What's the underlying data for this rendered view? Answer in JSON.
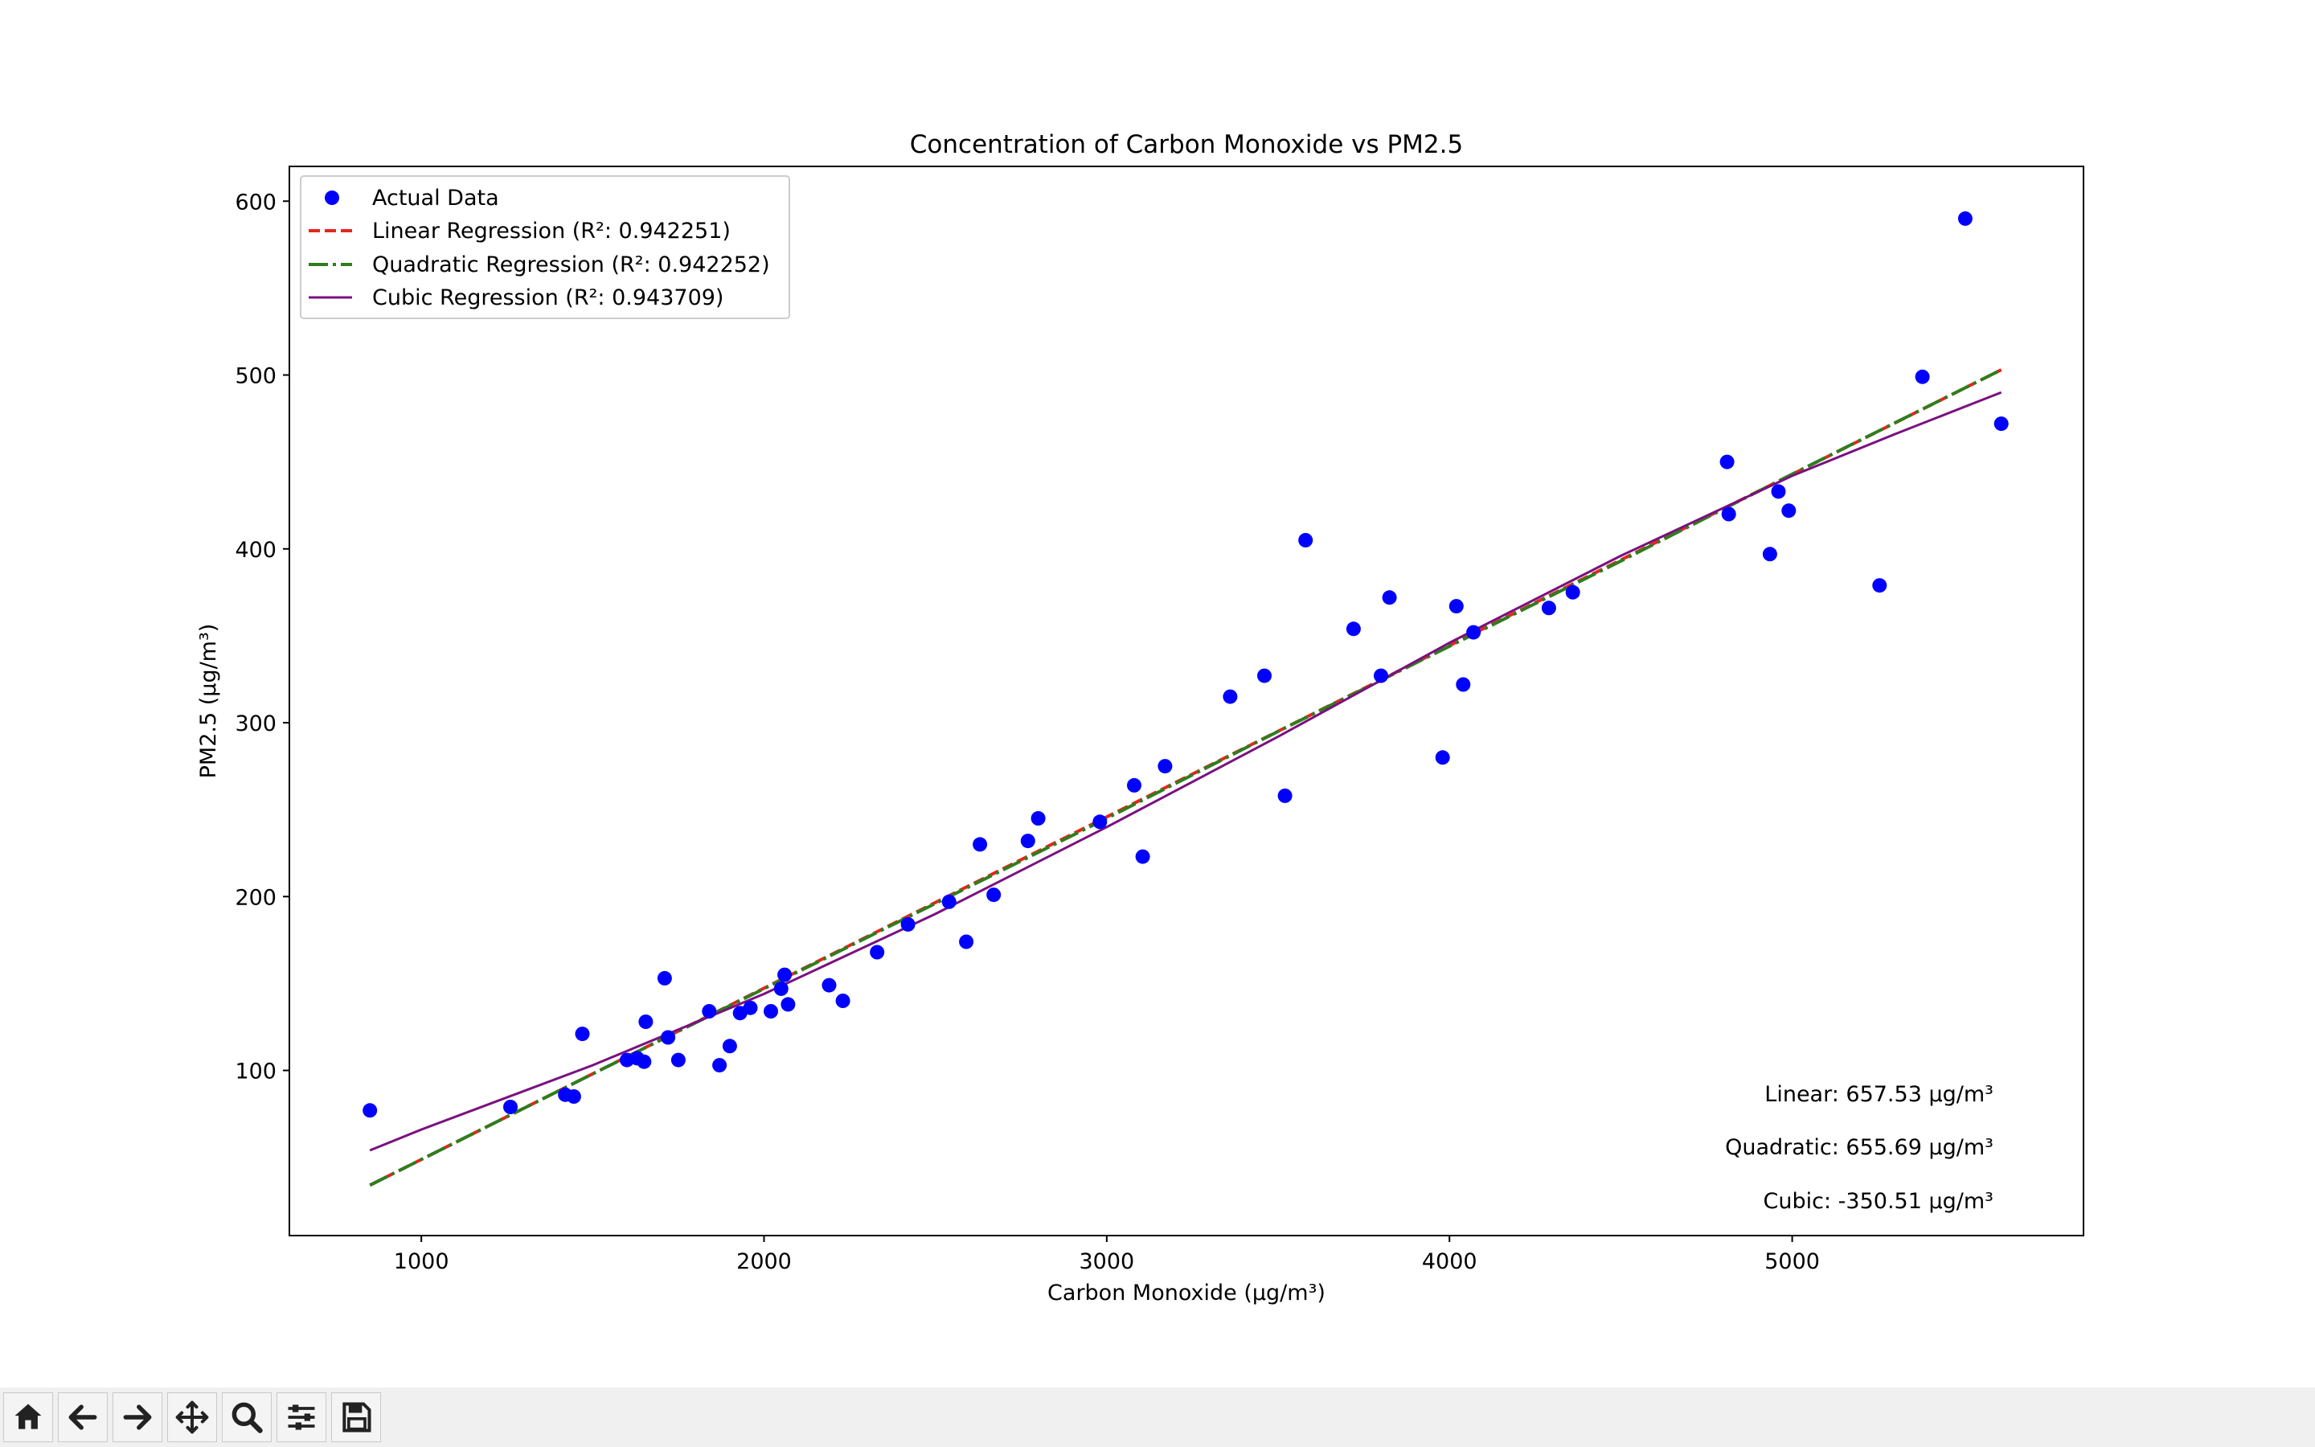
{
  "chart_data": {
    "type": "scatter",
    "title": "Concentration of Carbon Monoxide vs PM2.5",
    "xlabel": "Carbon Monoxide (µg/m³)",
    "ylabel": "PM2.5 (µg/m³)",
    "xlim": [
      615,
      5850
    ],
    "ylim": [
      5,
      620
    ],
    "xticks": [
      1000,
      2000,
      3000,
      4000,
      5000
    ],
    "yticks": [
      100,
      200,
      300,
      400,
      500,
      600
    ],
    "grid": false,
    "legend_position": "top-left",
    "points": {
      "name": "Actual Data",
      "color": "#0000ff",
      "x": [
        850,
        1260,
        1420,
        1445,
        1470,
        1600,
        1630,
        1650,
        1655,
        1710,
        1720,
        1750,
        1840,
        1870,
        1900,
        1930,
        1960,
        2020,
        2050,
        2060,
        2070,
        2190,
        2230,
        2330,
        2420,
        2540,
        2590,
        2630,
        2670,
        2770,
        2800,
        2980,
        3080,
        3105,
        3170,
        3360,
        3460,
        3520,
        3580,
        3720,
        3800,
        3825,
        3980,
        4020,
        4040,
        4070,
        4290,
        4360,
        4810,
        4815,
        4935,
        4960,
        4990,
        5255,
        5380,
        5505,
        5610
      ],
      "y": [
        77,
        79,
        86,
        85,
        121,
        106,
        107,
        105,
        128,
        153,
        119,
        106,
        134,
        103,
        114,
        133,
        136,
        134,
        147,
        155,
        138,
        149,
        140,
        168,
        184,
        197,
        174,
        230,
        201,
        232,
        245,
        243,
        264,
        223,
        275,
        315,
        327,
        258,
        405,
        354,
        327,
        372,
        280,
        367,
        322,
        352,
        366,
        375,
        450,
        420,
        397,
        433,
        422,
        379,
        499,
        590,
        472
      ]
    },
    "series": [
      {
        "name": "Linear Regression (R²: 0.942251)",
        "color": "#e8251b",
        "style": "dashed",
        "x": [
          850,
          5610
        ],
        "y": [
          34,
          503
        ]
      },
      {
        "name": "Quadratic Regression (R²: 0.942252)",
        "color": "#2f7d1e",
        "style": "dashdot",
        "x": [
          850,
          1500,
          2000,
          2500,
          3000,
          3500,
          4000,
          4500,
          5000,
          5610
        ],
        "y": [
          34,
          98,
          147,
          196,
          245,
          295,
          344,
          393,
          443,
          503
        ]
      },
      {
        "name": "Cubic Regression (R²: 0.943709)",
        "color": "#7a1080",
        "style": "solid",
        "x": [
          850,
          1000,
          1500,
          2000,
          2500,
          3000,
          3500,
          4000,
          4500,
          5000,
          5300,
          5610
        ],
        "y": [
          54,
          66,
          103,
          144,
          190,
          240,
          292,
          346,
          396,
          442,
          466,
          490
        ]
      }
    ],
    "annotations": [
      {
        "text": "Linear: 657.53 µg/m³",
        "color": "#e8251b"
      },
      {
        "text": "Quadratic: 655.69 µg/m³",
        "color": "#2f7d1e"
      },
      {
        "text": "Cubic: -350.51 µg/m³",
        "color": "#0000ff"
      }
    ]
  },
  "toolbar": {
    "buttons": [
      {
        "name": "home-button",
        "icon": "home-icon"
      },
      {
        "name": "back-button",
        "icon": "arrow-left-icon"
      },
      {
        "name": "forward-button",
        "icon": "arrow-right-icon"
      },
      {
        "name": "pan-button",
        "icon": "move-icon"
      },
      {
        "name": "zoom-button",
        "icon": "magnifier-icon"
      },
      {
        "name": "configure-subplots-button",
        "icon": "sliders-icon"
      },
      {
        "name": "save-button",
        "icon": "floppy-disk-icon"
      }
    ]
  }
}
